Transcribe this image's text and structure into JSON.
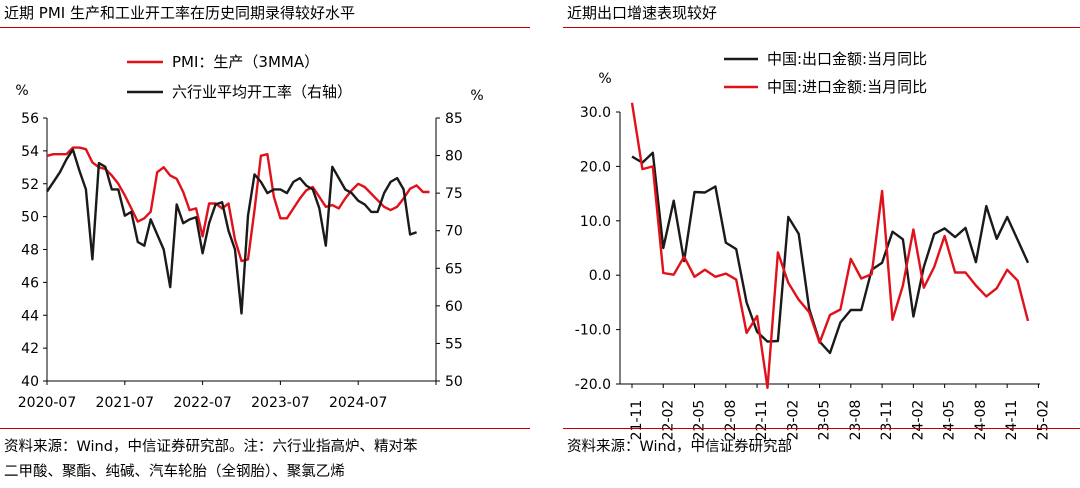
{
  "left_panel": {
    "title": "近期 PMI 生产和工业开工率在历史同期录得较好水平",
    "source_line1": "资料来源：Wind，中信证券研究部。注：六行业指高炉、精对苯",
    "source_line2": "二甲酸、聚酯、纯碱、汽车轮胎（全钢胎）、聚氯乙烯"
  },
  "right_panel": {
    "title": "近期出口增速表现较好",
    "source": "资料来源：Wind，中信证券研究部"
  },
  "colors": {
    "red": "#e0111b",
    "black": "#1a1a1a",
    "rule": "#c00000"
  },
  "chart_data": [
    {
      "type": "line",
      "title": "",
      "y_unit_left": "%",
      "y_unit_right": "%",
      "ylim_left": [
        40,
        56
      ],
      "ylim_right": [
        50,
        85
      ],
      "yticks_left": [
        "40",
        "42",
        "44",
        "46",
        "48",
        "50",
        "52",
        "54",
        "56"
      ],
      "yticks_right": [
        "50",
        "55",
        "60",
        "65",
        "70",
        "75",
        "80",
        "85"
      ],
      "x_tick_labels": [
        "2020-07",
        "2021-07",
        "2022-07",
        "2023-07",
        "2024-07"
      ],
      "grid": false,
      "legend_position": "top",
      "x_start": "2020-07",
      "series": [
        {
          "name": "PMI：生产（3MMA）",
          "axis": "left",
          "color": "#e0111b",
          "values": [
            53.7,
            53.8,
            53.8,
            53.8,
            54.2,
            54.2,
            54.1,
            53.3,
            53.0,
            52.9,
            52.5,
            52.0,
            51.3,
            50.5,
            49.7,
            49.9,
            50.3,
            52.7,
            53.0,
            52.5,
            52.3,
            51.5,
            50.4,
            50.5,
            48.8,
            50.8,
            50.8,
            50.5,
            50.8,
            48.6,
            47.3,
            47.4,
            50.4,
            53.7,
            53.8,
            51.2,
            49.9,
            49.9,
            50.5,
            51.1,
            51.6,
            51.8,
            51.2,
            50.6,
            50.7,
            50.5,
            51.1,
            51.6,
            52.0,
            51.8,
            51.4,
            51.0,
            50.6,
            50.4,
            50.6,
            51.1,
            51.7,
            51.9,
            51.5,
            51.5
          ]
        },
        {
          "name": "六行业平均开工率（右轴）",
          "axis": "right",
          "color": "#1a1a1a",
          "values": [
            75.2,
            76.5,
            77.8,
            79.5,
            80.8,
            78.0,
            75.5,
            66.2,
            79.0,
            78.5,
            75.5,
            75.5,
            72.0,
            72.5,
            68.5,
            68.0,
            71.5,
            69.5,
            67.5,
            62.5,
            73.5,
            71.0,
            71.5,
            71.8,
            67.0,
            71.0,
            73.5,
            73.8,
            70.0,
            67.5,
            59.0,
            72.0,
            77.5,
            76.5,
            75.0,
            75.5,
            75.5,
            75.0,
            76.5,
            77.0,
            76.0,
            75.5,
            73.0,
            68.0,
            78.5,
            77.0,
            75.5,
            75.0,
            74.0,
            73.5,
            72.5,
            72.5,
            75.0,
            76.5,
            77.0,
            75.5,
            69.5,
            69.8
          ]
        }
      ]
    },
    {
      "type": "line",
      "title": "",
      "y_unit": "%",
      "ylim": [
        -20,
        30
      ],
      "yticks": [
        "30.0",
        "20.0",
        "10.0",
        "0.0",
        "-10.0",
        "-20.0"
      ],
      "x_tick_labels": [
        "21-11",
        "22-02",
        "22-05",
        "22-08",
        "22-11",
        "23-02",
        "23-05",
        "23-08",
        "23-11",
        "24-02",
        "24-05",
        "24-08",
        "24-11",
        "25-02"
      ],
      "x_start": "2021-11",
      "grid": false,
      "legend_position": "top",
      "series": [
        {
          "name": "中国:出口金额:当月同比",
          "color": "#1a1a1a",
          "values": [
            21.8,
            20.7,
            22.5,
            5.0,
            13.7,
            2.6,
            15.3,
            15.2,
            16.3,
            6.0,
            4.8,
            -5.0,
            -10.4,
            -12.2,
            -12.1,
            10.7,
            7.6,
            -6.2,
            -12.2,
            -14.3,
            -8.7,
            -6.4,
            -6.4,
            1.0,
            2.3,
            8.0,
            6.6,
            -7.6,
            1.5,
            7.6,
            8.6,
            7.0,
            8.7,
            2.4,
            12.7,
            6.7,
            10.7,
            6.5,
            2.3
          ]
        },
        {
          "name": "中国:进口金额:当月同比",
          "color": "#e0111b",
          "values": [
            31.7,
            19.5,
            20.0,
            0.4,
            0.1,
            3.4,
            -0.3,
            1.0,
            -0.3,
            0.3,
            -0.8,
            -10.6,
            -7.5,
            -20.7,
            4.2,
            -1.4,
            -4.5,
            -6.8,
            -12.4,
            -7.3,
            -6.3,
            3.0,
            -0.6,
            0.2,
            15.5,
            -8.2,
            -1.9,
            8.4,
            -2.3,
            1.5,
            7.2,
            0.5,
            0.5,
            -1.9,
            -3.9,
            -2.4,
            1.0,
            -1.0,
            -8.4
          ]
        }
      ]
    }
  ]
}
